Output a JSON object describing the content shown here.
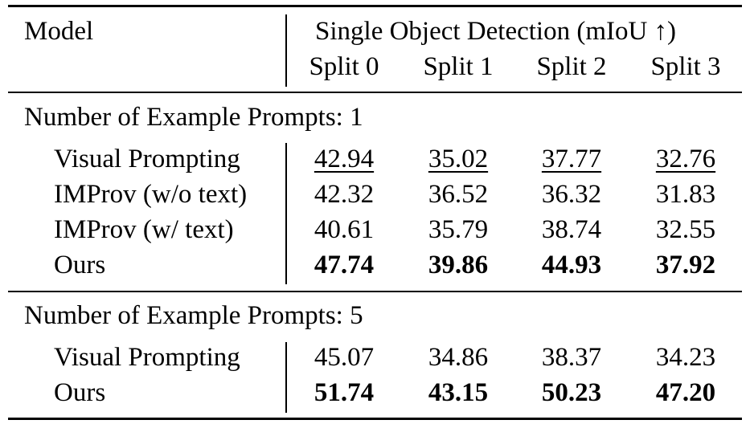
{
  "header": {
    "model": "Model",
    "group": "Single Object Detection (mIoU ↑)",
    "splits": [
      "Split 0",
      "Split 1",
      "Split 2",
      "Split 3"
    ]
  },
  "sections": [
    {
      "title": "Number of Example Prompts: 1",
      "rows": [
        {
          "model": "Visual Prompting",
          "values": [
            "42.94",
            "35.02",
            "37.77",
            "32.76"
          ],
          "style": "underline"
        },
        {
          "model": "IMProv (w/o text)",
          "values": [
            "42.32",
            "36.52",
            "36.32",
            "31.83"
          ],
          "style": "normal"
        },
        {
          "model": "IMProv (w/ text)",
          "values": [
            "40.61",
            "35.79",
            "38.74",
            "32.55"
          ],
          "style": "normal"
        },
        {
          "model": "Ours",
          "values": [
            "47.74",
            "39.86",
            "44.93",
            "37.92"
          ],
          "style": "bold"
        }
      ]
    },
    {
      "title": "Number of Example Prompts: 5",
      "rows": [
        {
          "model": "Visual Prompting",
          "values": [
            "45.07",
            "34.86",
            "38.37",
            "34.23"
          ],
          "style": "normal"
        },
        {
          "model": "Ours",
          "values": [
            "51.74",
            "43.15",
            "50.23",
            "47.20"
          ],
          "style": "bold"
        }
      ]
    }
  ]
}
